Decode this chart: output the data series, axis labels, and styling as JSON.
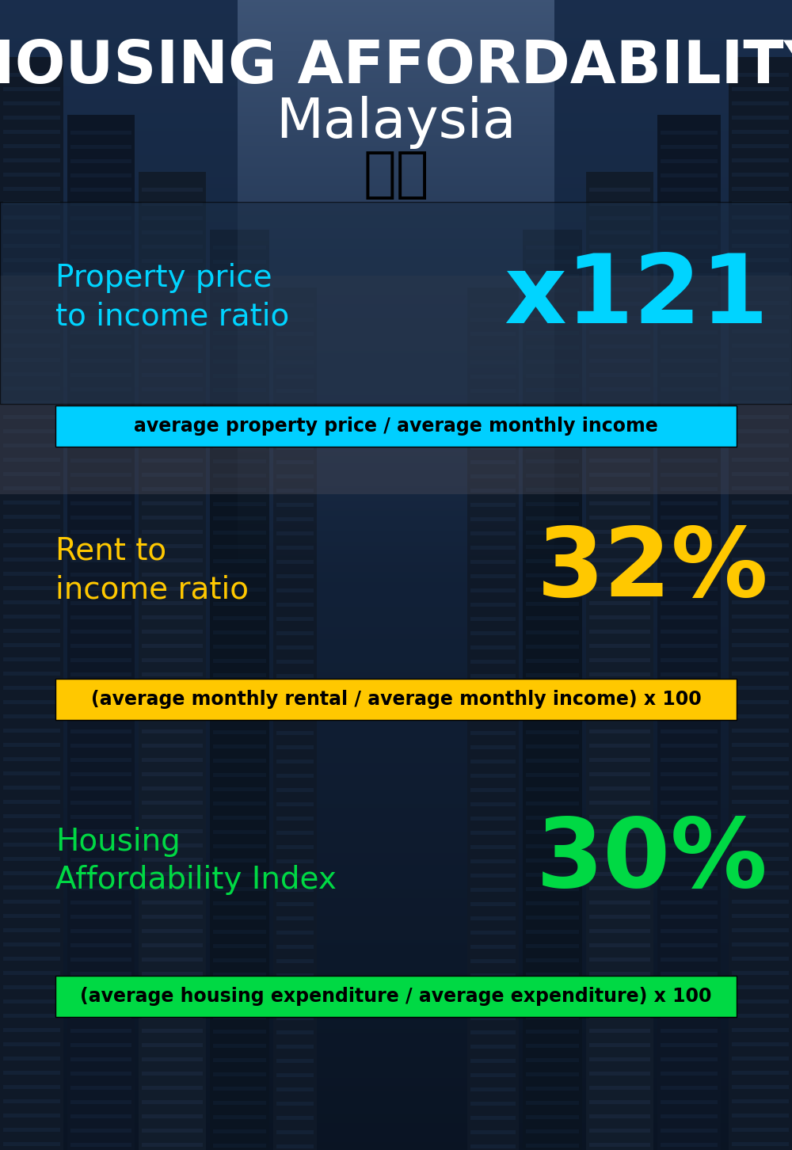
{
  "title_line1": "HOUSING AFFORDABILITY",
  "title_line2": "Malaysia",
  "flag_emoji": "🇲🇾",
  "bg_color": "#0d1b2a",
  "section1_label": "Property price\nto income ratio",
  "section1_value": "x121",
  "section1_label_color": "#00d4ff",
  "section1_value_color": "#00d4ff",
  "section1_bar_text": "average property price / average monthly income",
  "section1_bar_color": "#00cfff",
  "section2_label": "Rent to\nincome ratio",
  "section2_value": "32%",
  "section2_label_color": "#ffc800",
  "section2_value_color": "#ffc800",
  "section2_bar_text": "(average monthly rental / average monthly income) x 100",
  "section2_bar_color": "#ffc800",
  "section3_label": "Housing\nAffordability Index",
  "section3_value": "30%",
  "section3_label_color": "#00d944",
  "section3_value_color": "#00d944",
  "section3_bar_text": "(average housing expenditure / average expenditure) x 100",
  "section3_bar_color": "#00d944",
  "title1_color": "#ffffff",
  "title2_color": "#ffffff",
  "title1_fontsize": 54,
  "title2_fontsize": 50,
  "label_fontsize": 28,
  "value_fontsize": 88,
  "bar_text_fontsize": 17,
  "panel_alpha": 0.55
}
